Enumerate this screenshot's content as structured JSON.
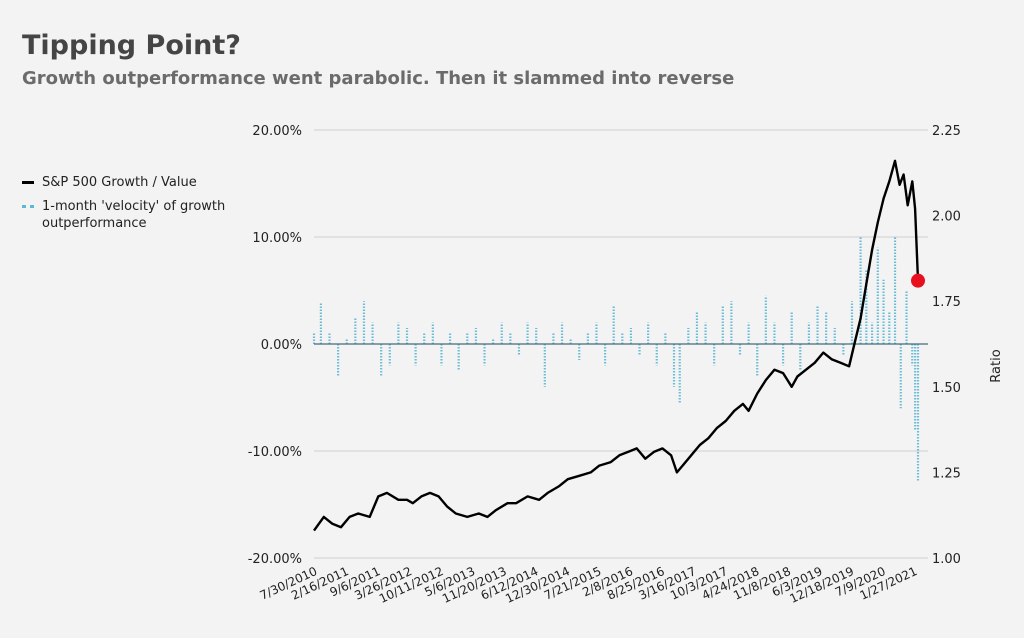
{
  "title": "Tipping Point?",
  "subtitle": "Growth outperformance went parabolic. Then it slammed into reverse",
  "colors": {
    "ratio_line": "#000000",
    "velocity_bars": "#5cb8d4",
    "marker": "#e8101e",
    "grid": "#cfcfcf",
    "zero_line": "#4a6a78",
    "background": "#f3f3f3"
  },
  "legend": [
    {
      "label": "S&P 500 Growth / Value",
      "style": "solid-black-line"
    },
    {
      "label": "1-month 'velocity' of growth outperformance",
      "style": "dotted-light-blue"
    }
  ],
  "chart_data": {
    "type": "line",
    "x_tick_labels": [
      "7/30/2010",
      "2/16/2011",
      "9/6/2011",
      "3/26/2012",
      "10/11/2012",
      "5/6/2013",
      "11/20/2013",
      "6/12/2014",
      "12/30/2014",
      "7/21/2015",
      "2/8/2016",
      "8/25/2016",
      "3/16/2017",
      "10/3/2017",
      "4/24/2018",
      "11/8/2018",
      "6/3/2019",
      "12/18/2019",
      "7/9/2020",
      "1/27/2021"
    ],
    "y_left": {
      "ticks": [
        "20.00%",
        "10.00%",
        "0.00%",
        "-10.00%",
        "-20.00%"
      ],
      "range": [
        -0.2,
        0.2
      ]
    },
    "y_right": {
      "label": "Ratio",
      "ticks": [
        "2.25",
        "2.00",
        "1.75",
        "1.50",
        "1.25",
        "1.00"
      ],
      "range": [
        1.0,
        2.25
      ]
    },
    "series": [
      {
        "name": "S&P 500 Growth / Value",
        "axis": "right",
        "x": [
          2010.58,
          2010.75,
          2010.9,
          2011.05,
          2011.2,
          2011.35,
          2011.55,
          2011.7,
          2011.85,
          2012.05,
          2012.2,
          2012.3,
          2012.45,
          2012.6,
          2012.75,
          2012.9,
          2013.05,
          2013.25,
          2013.45,
          2013.6,
          2013.75,
          2013.95,
          2014.1,
          2014.3,
          2014.5,
          2014.65,
          2014.85,
          2015.0,
          2015.2,
          2015.4,
          2015.55,
          2015.75,
          2015.9,
          2016.05,
          2016.2,
          2016.35,
          2016.5,
          2016.65,
          2016.8,
          2016.9,
          2017.0,
          2017.15,
          2017.3,
          2017.45,
          2017.6,
          2017.75,
          2017.9,
          2018.05,
          2018.15,
          2018.3,
          2018.45,
          2018.6,
          2018.75,
          2018.9,
          2019.0,
          2019.15,
          2019.3,
          2019.45,
          2019.6,
          2019.75,
          2019.9,
          2020.0,
          2020.1,
          2020.2,
          2020.3,
          2020.4,
          2020.5,
          2020.6,
          2020.7,
          2020.78,
          2020.85,
          2020.92,
          2021.0,
          2021.05,
          2021.1
        ],
        "values": [
          1.08,
          1.12,
          1.1,
          1.09,
          1.12,
          1.13,
          1.12,
          1.18,
          1.19,
          1.17,
          1.17,
          1.16,
          1.18,
          1.19,
          1.18,
          1.15,
          1.13,
          1.12,
          1.13,
          1.12,
          1.14,
          1.16,
          1.16,
          1.18,
          1.17,
          1.19,
          1.21,
          1.23,
          1.24,
          1.25,
          1.27,
          1.28,
          1.3,
          1.31,
          1.32,
          1.29,
          1.31,
          1.32,
          1.3,
          1.25,
          1.27,
          1.3,
          1.33,
          1.35,
          1.38,
          1.4,
          1.43,
          1.45,
          1.43,
          1.48,
          1.52,
          1.55,
          1.54,
          1.5,
          1.53,
          1.55,
          1.57,
          1.6,
          1.58,
          1.57,
          1.56,
          1.63,
          1.7,
          1.8,
          1.9,
          1.98,
          2.05,
          2.1,
          2.16,
          2.09,
          2.12,
          2.03,
          2.1,
          2.02,
          1.81
        ]
      },
      {
        "name": "1-month 'velocity' of growth outperformance",
        "axis": "left",
        "x": [
          2010.58,
          2010.7,
          2010.85,
          2011.0,
          2011.15,
          2011.3,
          2011.45,
          2011.6,
          2011.75,
          2011.9,
          2012.05,
          2012.2,
          2012.35,
          2012.5,
          2012.65,
          2012.8,
          2012.95,
          2013.1,
          2013.25,
          2013.4,
          2013.55,
          2013.7,
          2013.85,
          2014.0,
          2014.15,
          2014.3,
          2014.45,
          2014.6,
          2014.75,
          2014.9,
          2015.05,
          2015.2,
          2015.35,
          2015.5,
          2015.65,
          2015.8,
          2015.95,
          2016.1,
          2016.25,
          2016.4,
          2016.55,
          2016.7,
          2016.85,
          2016.95,
          2017.1,
          2017.25,
          2017.4,
          2017.55,
          2017.7,
          2017.85,
          2018.0,
          2018.15,
          2018.3,
          2018.45,
          2018.6,
          2018.75,
          2018.9,
          2019.05,
          2019.2,
          2019.35,
          2019.5,
          2019.65,
          2019.8,
          2019.95,
          2020.1,
          2020.2,
          2020.3,
          2020.4,
          2020.5,
          2020.6,
          2020.7,
          2020.8,
          2020.9,
          2021.0,
          2021.05,
          2021.1
        ],
        "values": [
          0.01,
          0.038,
          0.01,
          -0.03,
          0.005,
          0.025,
          0.04,
          0.02,
          -0.03,
          -0.02,
          0.02,
          0.015,
          -0.02,
          0.01,
          0.02,
          -0.02,
          0.01,
          -0.025,
          0.01,
          0.015,
          -0.02,
          0.005,
          0.02,
          0.01,
          -0.01,
          0.02,
          0.015,
          -0.04,
          0.01,
          0.02,
          0.005,
          -0.015,
          0.01,
          0.02,
          -0.02,
          0.035,
          0.01,
          0.015,
          -0.01,
          0.02,
          -0.02,
          0.01,
          -0.04,
          -0.055,
          0.015,
          0.03,
          0.02,
          -0.02,
          0.035,
          0.04,
          -0.01,
          0.02,
          -0.03,
          0.045,
          0.02,
          -0.02,
          0.03,
          -0.025,
          0.02,
          0.035,
          0.03,
          0.015,
          -0.01,
          0.04,
          0.1,
          0.07,
          0.02,
          0.09,
          0.06,
          0.03,
          0.1,
          -0.06,
          0.05,
          -0.02,
          -0.08,
          -0.128
        ]
      }
    ],
    "marker": {
      "x": 2021.1,
      "y_right": 1.81
    }
  }
}
